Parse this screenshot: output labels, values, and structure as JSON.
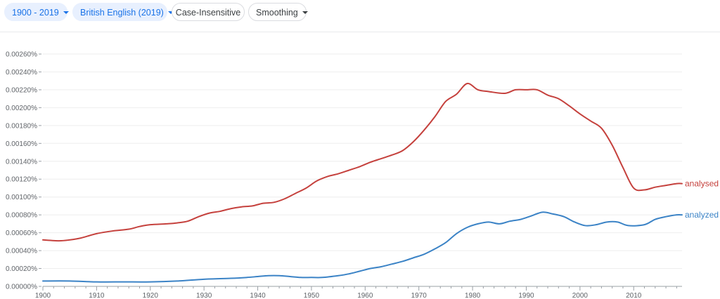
{
  "toolbar": {
    "range_label": "1900 - 2019",
    "corpus_label": "British English (2019)",
    "case_label": "Case-Insensitive",
    "smoothing_label": "Smoothing"
  },
  "chart_data": {
    "type": "line",
    "xlim": [
      1900,
      2019
    ],
    "ylim": [
      0,
      0.0026
    ],
    "grid": true,
    "x_ticks": [
      1900,
      1910,
      1920,
      1930,
      1940,
      1950,
      1960,
      1970,
      1980,
      1990,
      2000,
      2010
    ],
    "x_tick_labels": [
      "1900",
      "1910",
      "1920",
      "1930",
      "1940",
      "1950",
      "1960",
      "1970",
      "1980",
      "1990",
      "2000",
      "2010"
    ],
    "y_ticks": [
      0,
      0.0002,
      0.0004,
      0.0006,
      0.0008,
      0.001,
      0.0012,
      0.0014,
      0.0016,
      0.0018,
      0.002,
      0.0022,
      0.0024,
      0.0026
    ],
    "y_tick_labels": [
      "0.00000%",
      "0.00020%",
      "0.00040%",
      "0.00060%",
      "0.00080%",
      "0.00100%",
      "0.00120%",
      "0.00140%",
      "0.00160%",
      "0.00180%",
      "0.00200%",
      "0.00220%",
      "0.00240%",
      "0.00260%"
    ],
    "series": [
      {
        "name": "analysed",
        "color": "#c5413d",
        "x": [
          1900,
          1903,
          1905,
          1907,
          1910,
          1913,
          1916,
          1918,
          1920,
          1923,
          1925,
          1927,
          1929,
          1931,
          1933,
          1935,
          1937,
          1939,
          1941,
          1943,
          1945,
          1947,
          1949,
          1951,
          1953,
          1955,
          1957,
          1959,
          1961,
          1963,
          1965,
          1967,
          1969,
          1971,
          1973,
          1975,
          1977,
          1979,
          1981,
          1983,
          1986,
          1988,
          1990,
          1992,
          1994,
          1996,
          1998,
          2000,
          2002,
          2004,
          2006,
          2008,
          2010,
          2012,
          2014,
          2016,
          2018,
          2019
        ],
        "y": [
          0.00052,
          0.00051,
          0.00052,
          0.00054,
          0.00059,
          0.00062,
          0.00064,
          0.00067,
          0.00069,
          0.0007,
          0.00071,
          0.00073,
          0.00078,
          0.00082,
          0.00084,
          0.00087,
          0.00089,
          0.0009,
          0.00093,
          0.00094,
          0.00098,
          0.00104,
          0.0011,
          0.00118,
          0.00123,
          0.00126,
          0.0013,
          0.00134,
          0.00139,
          0.00143,
          0.00147,
          0.00152,
          0.00162,
          0.00175,
          0.0019,
          0.00207,
          0.00215,
          0.00227,
          0.0022,
          0.00218,
          0.00216,
          0.0022,
          0.0022,
          0.0022,
          0.00214,
          0.0021,
          0.00202,
          0.00193,
          0.00185,
          0.00177,
          0.00158,
          0.00133,
          0.0011,
          0.00108,
          0.00111,
          0.00113,
          0.00115,
          0.00115
        ]
      },
      {
        "name": "analyzed",
        "color": "#3b83c6",
        "x": [
          1900,
          1905,
          1910,
          1915,
          1920,
          1925,
          1930,
          1935,
          1938,
          1940,
          1942,
          1944,
          1946,
          1948,
          1950,
          1952,
          1955,
          1957,
          1959,
          1961,
          1963,
          1965,
          1967,
          1969,
          1971,
          1973,
          1975,
          1977,
          1979,
          1981,
          1983,
          1985,
          1987,
          1989,
          1991,
          1993,
          1995,
          1997,
          1999,
          2001,
          2003,
          2005,
          2007,
          2009,
          2012,
          2014,
          2016,
          2018,
          2019
        ],
        "y": [
          6e-05,
          6e-05,
          5e-05,
          5e-05,
          5e-05,
          6e-05,
          8e-05,
          9e-05,
          0.0001,
          0.00011,
          0.00012,
          0.00012,
          0.00011,
          0.0001,
          0.0001,
          0.0001,
          0.00012,
          0.00014,
          0.00017,
          0.0002,
          0.00022,
          0.00025,
          0.00028,
          0.00032,
          0.00036,
          0.00042,
          0.00049,
          0.00059,
          0.00066,
          0.0007,
          0.00072,
          0.0007,
          0.00073,
          0.00075,
          0.00079,
          0.00083,
          0.00081,
          0.00078,
          0.00072,
          0.00068,
          0.00069,
          0.00072,
          0.00072,
          0.00068,
          0.00069,
          0.00075,
          0.00078,
          0.0008,
          0.0008
        ]
      }
    ]
  }
}
